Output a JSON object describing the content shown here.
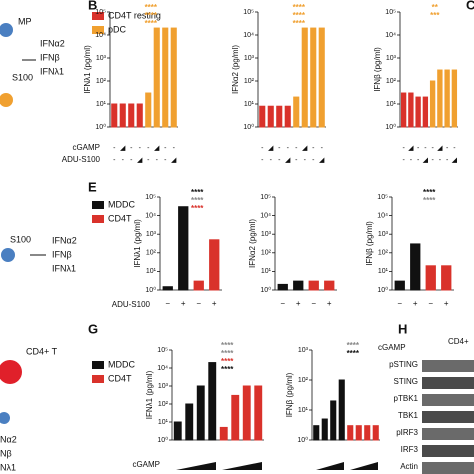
{
  "figure": {
    "panel_labels": [
      "B",
      "C",
      "E",
      "G",
      "H"
    ],
    "legend_b": [
      {
        "name": "CD4T resting",
        "color": "#d9322b"
      },
      {
        "name": "pDC",
        "color": "#f0a030"
      }
    ],
    "legend_e": [
      {
        "name": "MDDC",
        "color": "#111111"
      },
      {
        "name": "CD4T",
        "color": "#d9322b"
      }
    ],
    "legend_g": [
      {
        "name": "MDDC",
        "color": "#111111"
      },
      {
        "name": "CD4T",
        "color": "#d9322b"
      }
    ],
    "b_rows": [
      "cGAMP",
      "ADU-S100"
    ],
    "e_row": "ADU-S100",
    "g_row": "cGAMP",
    "diagram_top": [
      "MP",
      "S100",
      "IFNα2",
      "IFNβ",
      "IFNλ1"
    ],
    "diagram_mid": [
      "S100",
      "IFNα2",
      "IFNβ",
      "IFNλ1"
    ],
    "diagram_bottom": [
      "CD4+ T",
      "Nα2",
      "Nβ",
      "Nλ1"
    ],
    "blot_header": [
      "cGAMP",
      "CD4+"
    ],
    "blot_rows": [
      "pSTING",
      "STING",
      "pTBK1",
      "TBK1",
      "pIRF3",
      "IRF3",
      "Actin"
    ]
  },
  "chart_data": [
    {
      "type": "bar",
      "ylabel": "IFNλ1 (pg/ml)",
      "log_scale": true,
      "ylim": [
        1,
        100000
      ],
      "yticks": [
        {
          "value": 1,
          "label": "10⁰"
        },
        {
          "value": 10,
          "label": "10¹"
        },
        {
          "value": 100,
          "label": "10²"
        },
        {
          "value": 1000,
          "label": "10³"
        },
        {
          "value": 10000,
          "label": "10⁴"
        },
        {
          "value": 100000,
          "label": "10⁵"
        }
      ],
      "categories": [
        null,
        null,
        null,
        null,
        null,
        null,
        null,
        null
      ],
      "series": [
        {
          "name": "CD4T resting",
          "color": "#d9322b",
          "values": [
            10,
            10,
            10,
            10,
            null,
            null,
            null,
            null
          ]
        },
        {
          "name": "pDC",
          "color": "#f0a030",
          "values": [
            null,
            null,
            null,
            null,
            30,
            20000,
            20000,
            20000
          ]
        }
      ],
      "x_rows": [
        [
          "-",
          "◢",
          "-",
          "-",
          "-",
          "◢",
          "-",
          "-"
        ],
        [
          "-",
          "-",
          "-",
          "◢",
          "-",
          "-",
          "-",
          "◢"
        ]
      ],
      "annotations": [
        {
          "text": "****",
          "color": "#f0a030"
        },
        {
          "text": "****",
          "color": "#f0a030"
        },
        {
          "text": "****",
          "color": "#f0a030"
        }
      ]
    },
    {
      "type": "bar",
      "ylabel": "IFNα2 (pg/ml)",
      "log_scale": true,
      "ylim": [
        1,
        100000
      ],
      "yticks": [
        {
          "value": 1,
          "label": "10⁰"
        },
        {
          "value": 10,
          "label": "10¹"
        },
        {
          "value": 100,
          "label": "10²"
        },
        {
          "value": 1000,
          "label": "10³"
        },
        {
          "value": 10000,
          "label": "10⁴"
        },
        {
          "value": 100000,
          "label": "10⁵"
        }
      ],
      "categories": [
        null,
        null,
        null,
        null,
        null,
        null,
        null,
        null
      ],
      "series": [
        {
          "name": "CD4T resting",
          "color": "#d9322b",
          "values": [
            8,
            8,
            8,
            8,
            null,
            null,
            null,
            null
          ]
        },
        {
          "name": "pDC",
          "color": "#f0a030",
          "values": [
            null,
            null,
            null,
            null,
            20,
            20000,
            20000,
            20000
          ]
        }
      ],
      "x_rows": [
        [
          "-",
          "◢",
          "-",
          "-",
          "-",
          "◢",
          "-",
          "-"
        ],
        [
          "-",
          "-",
          "-",
          "◢",
          "-",
          "-",
          "-",
          "◢"
        ]
      ],
      "annotations": [
        {
          "text": "****",
          "color": "#f0a030"
        },
        {
          "text": "****",
          "color": "#f0a030"
        },
        {
          "text": "****",
          "color": "#f0a030"
        }
      ]
    },
    {
      "type": "bar",
      "ylabel": "IFNβ (pg/ml)",
      "log_scale": true,
      "ylim": [
        1,
        100000
      ],
      "yticks": [
        {
          "value": 1,
          "label": "10⁰"
        },
        {
          "value": 10,
          "label": "10¹"
        },
        {
          "value": 100,
          "label": "10²"
        },
        {
          "value": 1000,
          "label": "10³"
        },
        {
          "value": 10000,
          "label": "10⁴"
        },
        {
          "value": 100000,
          "label": "10⁵"
        }
      ],
      "categories": [
        null,
        null,
        null,
        null,
        null,
        null,
        null,
        null
      ],
      "series": [
        {
          "name": "CD4T resting",
          "color": "#d9322b",
          "values": [
            30,
            30,
            20,
            20,
            null,
            null,
            null,
            null
          ]
        },
        {
          "name": "pDC",
          "color": "#f0a030",
          "values": [
            null,
            null,
            null,
            null,
            100,
            300,
            300,
            300
          ]
        }
      ],
      "x_rows": [
        [
          "-",
          "◢",
          "-",
          "-",
          "-",
          "◢",
          "-",
          "-"
        ],
        [
          "-",
          "-",
          "-",
          "◢",
          "-",
          "-",
          "-",
          "◢"
        ]
      ],
      "annotations": [
        {
          "text": "**",
          "color": "#f0a030"
        },
        {
          "text": "***",
          "color": "#f0a030"
        }
      ]
    },
    {
      "type": "bar",
      "ylabel": "IFNλ1 (pg/ml)",
      "log_scale": true,
      "ylim": [
        1,
        100000
      ],
      "yticks": [
        {
          "value": 1,
          "label": "10⁰"
        },
        {
          "value": 10,
          "label": "10¹"
        },
        {
          "value": 100,
          "label": "10²"
        },
        {
          "value": 1000,
          "label": "10³"
        },
        {
          "value": 10000,
          "label": "10⁴"
        },
        {
          "value": 100000,
          "label": "10⁵"
        }
      ],
      "categories": [
        "−",
        "+",
        "−",
        "+"
      ],
      "series": [
        {
          "name": "MDDC",
          "color": "#111111",
          "values": [
            1.5,
            30000,
            null,
            null
          ]
        },
        {
          "name": "CD4T",
          "color": "#d9322b",
          "values": [
            null,
            null,
            3,
            500
          ]
        }
      ],
      "x_rows": [],
      "annotations": [
        {
          "text": "****",
          "color": "#111111"
        },
        {
          "text": "****",
          "color": "#888888"
        },
        {
          "text": "****",
          "color": "#d9322b"
        }
      ]
    },
    {
      "type": "bar",
      "ylabel": "IFNα2 (pg/ml)",
      "log_scale": true,
      "ylim": [
        1,
        100000
      ],
      "yticks": [
        {
          "value": 1,
          "label": "10⁰"
        },
        {
          "value": 10,
          "label": "10¹"
        },
        {
          "value": 100,
          "label": "10²"
        },
        {
          "value": 1000,
          "label": "10³"
        },
        {
          "value": 10000,
          "label": "10⁴"
        },
        {
          "value": 100000,
          "label": "10⁵"
        }
      ],
      "categories": [
        "−",
        "+",
        "−",
        "+"
      ],
      "series": [
        {
          "name": "MDDC",
          "color": "#111111",
          "values": [
            2,
            3,
            null,
            null
          ]
        },
        {
          "name": "CD4T",
          "color": "#d9322b",
          "values": [
            null,
            null,
            3,
            3
          ]
        }
      ],
      "x_rows": [],
      "annotations": []
    },
    {
      "type": "bar",
      "ylabel": "IFNβ (pg/ml)",
      "log_scale": true,
      "ylim": [
        1,
        100000
      ],
      "yticks": [
        {
          "value": 1,
          "label": "10⁰"
        },
        {
          "value": 10,
          "label": "10¹"
        },
        {
          "value": 100,
          "label": "10²"
        },
        {
          "value": 1000,
          "label": "10³"
        },
        {
          "value": 10000,
          "label": "10⁴"
        },
        {
          "value": 100000,
          "label": "10⁵"
        }
      ],
      "categories": [
        "−",
        "+",
        "−",
        "+"
      ],
      "series": [
        {
          "name": "MDDC",
          "color": "#111111",
          "values": [
            3,
            300,
            null,
            null
          ]
        },
        {
          "name": "CD4T",
          "color": "#d9322b",
          "values": [
            null,
            null,
            20,
            20
          ]
        }
      ],
      "x_rows": [],
      "annotations": [
        {
          "text": "****",
          "color": "#111111"
        },
        {
          "text": "****",
          "color": "#888888"
        }
      ]
    },
    {
      "type": "bar",
      "ylabel": "IFNλ1 (pg/ml)",
      "log_scale": true,
      "ylim": [
        1,
        100000
      ],
      "yticks": [
        {
          "value": 1,
          "label": "10⁰"
        },
        {
          "value": 10,
          "label": "10¹"
        },
        {
          "value": 100,
          "label": "10²"
        },
        {
          "value": 1000,
          "label": "10³"
        },
        {
          "value": 10000,
          "label": "10⁴"
        },
        {
          "value": 100000,
          "label": "10⁵"
        }
      ],
      "categories": [
        null,
        null,
        null,
        null,
        null,
        null,
        null,
        null
      ],
      "series": [
        {
          "name": "MDDC",
          "color": "#111111",
          "values": [
            10,
            100,
            1000,
            20000,
            null,
            null,
            null,
            null
          ]
        },
        {
          "name": "CD4T",
          "color": "#d9322b",
          "values": [
            null,
            null,
            null,
            null,
            5,
            300,
            1000,
            1000
          ]
        }
      ],
      "x_rows": [],
      "annotations": [
        {
          "text": "****",
          "color": "#888888"
        },
        {
          "text": "****",
          "color": "#888888"
        },
        {
          "text": "****",
          "color": "#d9322b"
        },
        {
          "text": "****",
          "color": "#111111"
        }
      ]
    },
    {
      "type": "bar",
      "ylabel": "IFNβ (pg/ml)",
      "log_scale": true,
      "ylim": [
        1,
        1000
      ],
      "yticks": [
        {
          "value": 1,
          "label": "10⁰"
        },
        {
          "value": 10,
          "label": "10¹"
        },
        {
          "value": 100,
          "label": "10²"
        },
        {
          "value": 1000,
          "label": "10³"
        }
      ],
      "categories": [
        null,
        null,
        null,
        null,
        null,
        null,
        null,
        null
      ],
      "series": [
        {
          "name": "MDDC",
          "color": "#111111",
          "values": [
            3,
            5,
            20,
            100,
            null,
            null,
            null,
            null
          ]
        },
        {
          "name": "CD4T",
          "color": "#d9322b",
          "values": [
            null,
            null,
            null,
            null,
            3,
            3,
            3,
            3
          ]
        }
      ],
      "x_rows": [],
      "annotations": [
        {
          "text": "****",
          "color": "#888888"
        },
        {
          "text": "****",
          "color": "#111111"
        }
      ]
    }
  ]
}
